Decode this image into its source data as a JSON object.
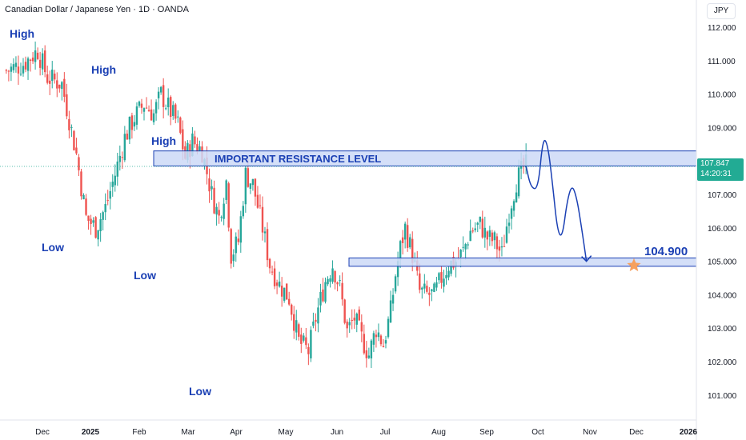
{
  "header": {
    "symbol_title": "Canadian Dollar / Japanese Yen · 1D · OANDA",
    "currency": "JPY"
  },
  "price_badge": {
    "price": "107.847",
    "countdown": "14:20:31",
    "color": "#22ab94"
  },
  "annotations": {
    "resistance_label": "IMPORTANT RESISTANCE LEVEL",
    "target_label": "104.900",
    "pivot_labels": [
      {
        "text": "High"
      },
      {
        "text": "High"
      },
      {
        "text": "High"
      },
      {
        "text": "Low"
      },
      {
        "text": "Low"
      },
      {
        "text": "Low"
      }
    ]
  },
  "colors": {
    "up": "#26a69a",
    "down": "#ef5350",
    "accent": "#1b40b4",
    "zone_fill": "#cdd9f7",
    "star": "#f6a05e"
  },
  "chart_data": {
    "type": "candlestick",
    "title": "Canadian Dollar / Japanese Yen · 1D · OANDA",
    "ylim": [
      100.6,
      112.4
    ],
    "y_ticks": [
      "112.000",
      "111.000",
      "110.000",
      "109.000",
      "108.000",
      "107.000",
      "106.000",
      "105.000",
      "104.000",
      "103.000",
      "102.000",
      "101.000"
    ],
    "x_ticks": [
      "Dec",
      "2025",
      "Feb",
      "Mar",
      "Apr",
      "May",
      "Jun",
      "Jul",
      "Aug",
      "Sep",
      "Oct",
      "Nov",
      "Dec",
      "2026"
    ],
    "close_path": [
      [
        -7,
        110.7
      ],
      [
        0,
        110.9
      ],
      [
        6,
        111.3
      ],
      [
        10,
        110.5
      ],
      [
        16,
        110.3
      ],
      [
        22,
        108.2
      ],
      [
        26,
        106.3
      ],
      [
        30,
        106.0
      ],
      [
        34,
        106.6
      ],
      [
        38,
        107.6
      ],
      [
        42,
        108.7
      ],
      [
        46,
        109.3
      ],
      [
        50,
        109.7
      ],
      [
        54,
        109.4
      ],
      [
        57,
        110.0
      ],
      [
        60,
        109.6
      ],
      [
        64,
        109.1
      ],
      [
        67,
        108.1
      ],
      [
        70,
        108.6
      ],
      [
        74,
        108.3
      ],
      [
        78,
        107.0
      ],
      [
        81,
        106.3
      ],
      [
        84,
        107.4
      ],
      [
        86,
        105.2
      ],
      [
        89,
        105.6
      ],
      [
        92,
        107.6
      ],
      [
        95,
        107.3
      ],
      [
        99,
        106.0
      ],
      [
        102,
        104.9
      ],
      [
        106,
        104.3
      ],
      [
        110,
        103.9
      ],
      [
        114,
        102.6
      ],
      [
        118,
        102.3
      ],
      [
        121,
        103.3
      ],
      [
        125,
        104.4
      ],
      [
        128,
        104.9
      ],
      [
        131,
        104.2
      ],
      [
        134,
        102.9
      ],
      [
        137,
        103.3
      ],
      [
        140,
        102.7
      ],
      [
        143,
        102.2
      ],
      [
        146,
        103.0
      ],
      [
        149,
        102.5
      ],
      [
        152,
        103.5
      ],
      [
        154,
        104.6
      ],
      [
        156,
        105.4
      ],
      [
        158,
        106.0
      ],
      [
        161,
        105.2
      ],
      [
        164,
        104.1
      ],
      [
        167,
        104.0
      ],
      [
        170,
        104.0
      ],
      [
        173,
        104.5
      ],
      [
        176,
        104.9
      ],
      [
        179,
        105.0
      ],
      [
        182,
        105.3
      ],
      [
        185,
        105.9
      ],
      [
        189,
        106.1
      ],
      [
        192,
        105.7
      ],
      [
        195,
        105.6
      ],
      [
        198,
        105.2
      ],
      [
        201,
        106.5
      ],
      [
        204,
        107.4
      ],
      [
        207,
        107.8
      ],
      [
        208,
        107.85
      ]
    ],
    "resistance_zone": [
      107.85,
      108.3
    ],
    "support_zone": [
      104.85,
      105.1
    ],
    "target_price": 104.9,
    "projection_path": [
      [
        208,
        107.85
      ],
      [
        210,
        107.2
      ],
      [
        213,
        107.15
      ],
      [
        215,
        108.7
      ],
      [
        217,
        108.5
      ],
      [
        219,
        107.3
      ],
      [
        221,
        105.9
      ],
      [
        223,
        105.7
      ],
      [
        225,
        106.8
      ],
      [
        227,
        107.3
      ],
      [
        229,
        106.9
      ],
      [
        231,
        106.0
      ],
      [
        233,
        105.0
      ]
    ],
    "pivots": [
      {
        "type": "High",
        "price": 111.6
      },
      {
        "type": "High",
        "price": 110.2
      },
      {
        "type": "High",
        "price": 108.5
      },
      {
        "type": "Low",
        "price": 105.7
      },
      {
        "type": "Low",
        "price": 105.1
      },
      {
        "type": "Low",
        "price": 101.6
      }
    ],
    "grid": false,
    "y_axis_position": "right"
  }
}
